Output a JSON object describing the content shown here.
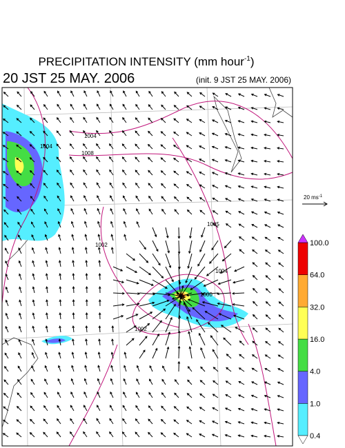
{
  "header": {
    "title": "PRECIPITATION INTENSITY (mm hour",
    "title_sup": "-1",
    "title_end": ")",
    "subtitle": "20 JST 25 MAY. 2006",
    "init": "(init. 9 JST 25 MAY. 2006)"
  },
  "wind_legend": {
    "label": "20 ms",
    "label_sup": "-1"
  },
  "contour_labels": [
    "1004",
    "1004",
    "1008",
    "1002",
    "1005",
    "1004",
    "1000",
    "1002"
  ],
  "colorbar": {
    "labels": [
      "0.4",
      "1.0",
      "4.0",
      "16.0",
      "32.0",
      "64.0",
      "100.0"
    ],
    "colors": [
      "#55eeff",
      "#6666ff",
      "#44dd44",
      "#ffff55",
      "#ffaa33",
      "#ee0000"
    ],
    "over_color": "#cc33ff",
    "under_color": "#ffffff"
  }
}
